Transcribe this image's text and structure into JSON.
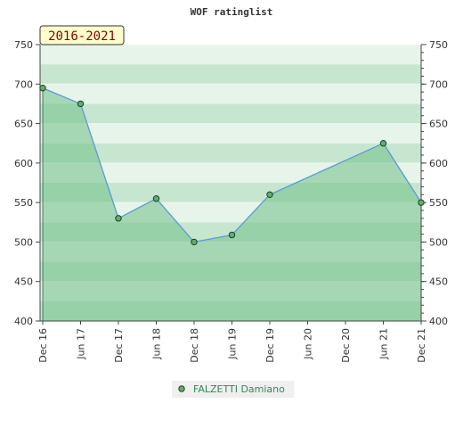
{
  "chart_data": {
    "type": "area",
    "title": "WOF ratinglist",
    "period_label": "2016-2021",
    "ylim": [
      400,
      750
    ],
    "yticks": [
      400,
      450,
      500,
      550,
      600,
      650,
      700,
      750
    ],
    "x_tick_labels": [
      "Dec 16",
      "Jun 17",
      "Dec 17",
      "Jun 18",
      "Dec 18",
      "Jun 19",
      "Dec 19",
      "Jun 20",
      "Dec 20",
      "Jun 21",
      "Dec 21"
    ],
    "grid": true,
    "legend_position": "bottom",
    "series": [
      {
        "name": "FALZETTI Damiano",
        "x": [
          "Dec 16",
          "Jun 17",
          "Dec 17",
          "Jun 18",
          "Dec 18",
          "Jun 19",
          "Dec 19",
          "Jun 21",
          "Dec 21"
        ],
        "values": [
          695,
          675,
          530,
          555,
          500,
          509,
          560,
          625,
          550
        ]
      }
    ],
    "colors": {
      "fill": "#6fbf86",
      "line": "#5b9bd5",
      "marker": "#5fae6e",
      "band_dark": "#c7e6cf",
      "band_light": "#e6f4ea"
    }
  }
}
